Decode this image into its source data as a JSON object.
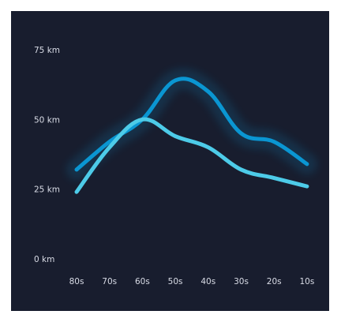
{
  "chart_data": {
    "type": "line",
    "categories": [
      "80s",
      "70s",
      "60s",
      "50s",
      "40s",
      "30s",
      "20s",
      "10s"
    ],
    "y_tick_labels": [
      "0 km",
      "25 km",
      "50 km",
      "75 km"
    ],
    "y_ticks": [
      0,
      25,
      50,
      75
    ],
    "ylim": [
      0,
      75
    ],
    "grid": false,
    "series": [
      {
        "values": [
          32,
          42,
          50,
          64,
          60,
          45,
          42,
          34
        ],
        "color": "#0a96d2",
        "glow": true
      },
      {
        "values": [
          24,
          40,
          50,
          44,
          40,
          32,
          29,
          26
        ],
        "color": "#4dcbe8",
        "glow": false
      }
    ]
  }
}
